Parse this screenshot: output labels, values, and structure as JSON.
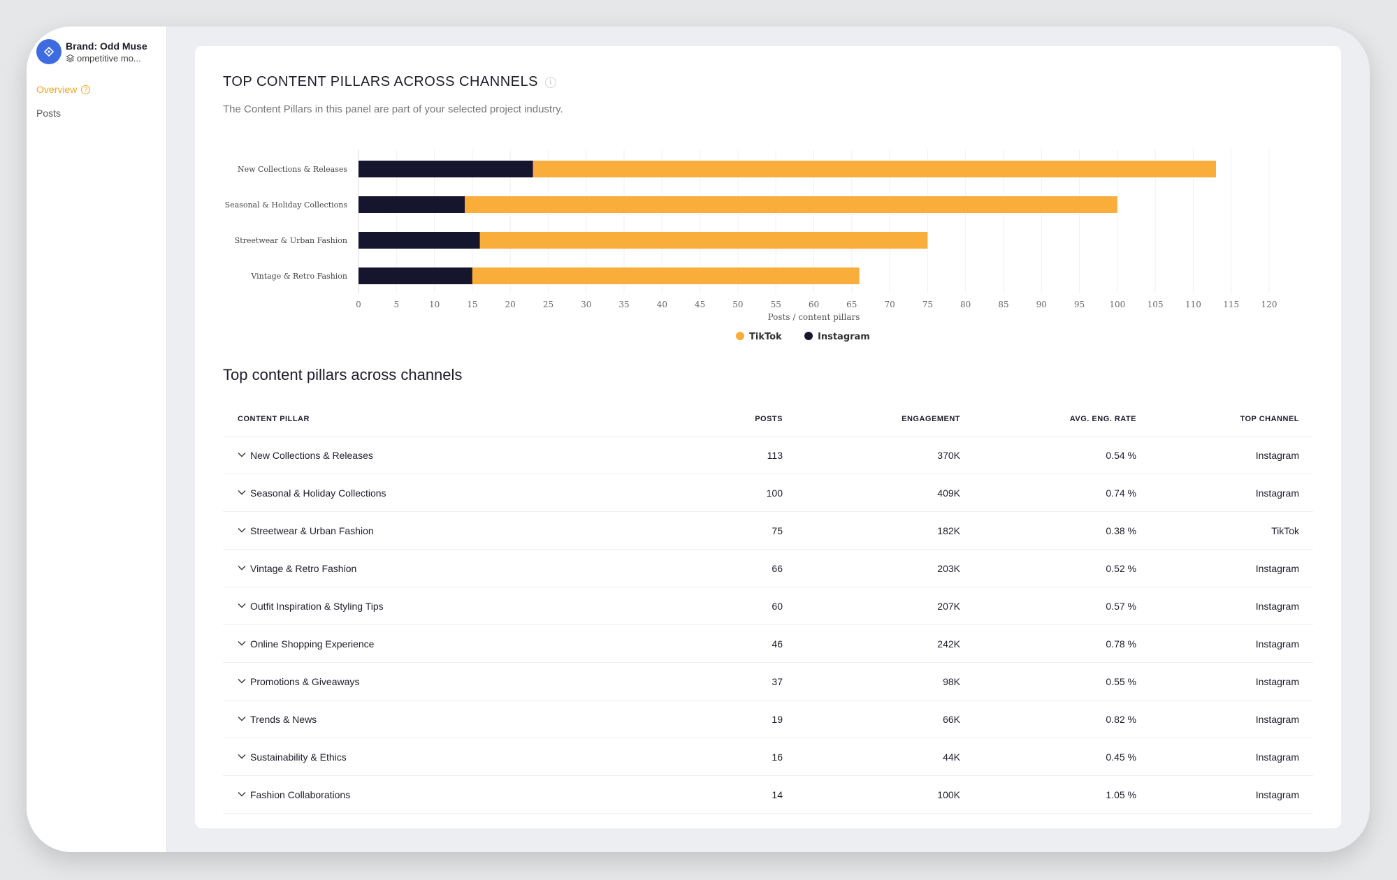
{
  "sidebar": {
    "brand_name": "Brand: Odd Muse",
    "brand_sub": "ompetitive mo...",
    "nav": [
      {
        "label": "Overview",
        "active": true
      },
      {
        "label": "Posts",
        "active": false
      }
    ]
  },
  "panel": {
    "title": "TOP CONTENT PILLARS ACROSS CHANNELS",
    "subtitle": "The Content Pillars in this panel are part of your selected project industry."
  },
  "chart_data": {
    "type": "bar",
    "orientation": "horizontal",
    "stacked": true,
    "categories": [
      "New Collections & Releases",
      "Seasonal & Holiday Collections",
      "Streetwear & Urban Fashion",
      "Vintage & Retro Fashion"
    ],
    "series": [
      {
        "name": "Instagram",
        "color": "#16152e",
        "values": [
          23,
          14,
          16,
          15
        ]
      },
      {
        "name": "TikTok",
        "color": "#f9ad3b",
        "values": [
          90,
          86,
          59,
          51
        ]
      }
    ],
    "xlabel": "Posts / content pillars",
    "xlim": [
      0,
      120
    ],
    "xticks": [
      0,
      5,
      10,
      15,
      20,
      25,
      30,
      35,
      40,
      45,
      50,
      55,
      60,
      65,
      70,
      75,
      80,
      85,
      90,
      95,
      100,
      105,
      110,
      115,
      120
    ],
    "grid": true,
    "legend": [
      {
        "label": "TikTok",
        "color": "#f9ad3b"
      },
      {
        "label": "Instagram",
        "color": "#16152e"
      }
    ],
    "legend_position": "bottom-center"
  },
  "table": {
    "title": "Top content pillars across channels",
    "headers": {
      "pillar": "CONTENT PILLAR",
      "posts": "POSTS",
      "engagement": "ENGAGEMENT",
      "rate": "AVG. ENG. RATE",
      "top": "TOP CHANNEL"
    },
    "rows": [
      {
        "pillar": "New Collections & Releases",
        "posts": "113",
        "engagement": "370K",
        "rate": "0.54 %",
        "top": "Instagram"
      },
      {
        "pillar": "Seasonal & Holiday Collections",
        "posts": "100",
        "engagement": "409K",
        "rate": "0.74 %",
        "top": "Instagram"
      },
      {
        "pillar": "Streetwear & Urban Fashion",
        "posts": "75",
        "engagement": "182K",
        "rate": "0.38 %",
        "top": "TikTok"
      },
      {
        "pillar": "Vintage & Retro Fashion",
        "posts": "66",
        "engagement": "203K",
        "rate": "0.52 %",
        "top": "Instagram"
      },
      {
        "pillar": "Outfit Inspiration & Styling Tips",
        "posts": "60",
        "engagement": "207K",
        "rate": "0.57 %",
        "top": "Instagram"
      },
      {
        "pillar": "Online Shopping Experience",
        "posts": "46",
        "engagement": "242K",
        "rate": "0.78 %",
        "top": "Instagram"
      },
      {
        "pillar": "Promotions & Giveaways",
        "posts": "37",
        "engagement": "98K",
        "rate": "0.55 %",
        "top": "Instagram"
      },
      {
        "pillar": "Trends & News",
        "posts": "19",
        "engagement": "66K",
        "rate": "0.82 %",
        "top": "Instagram"
      },
      {
        "pillar": "Sustainability & Ethics",
        "posts": "16",
        "engagement": "44K",
        "rate": "0.45 %",
        "top": "Instagram"
      },
      {
        "pillar": "Fashion Collaborations",
        "posts": "14",
        "engagement": "100K",
        "rate": "1.05 %",
        "top": "Instagram"
      }
    ]
  }
}
